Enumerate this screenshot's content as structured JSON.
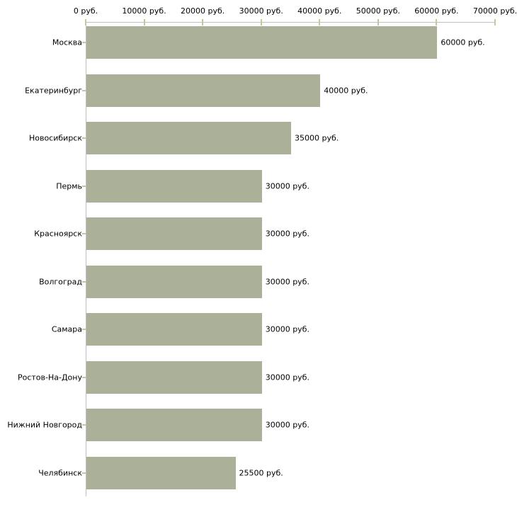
{
  "chart_data": {
    "type": "bar",
    "orientation": "horizontal",
    "title": "",
    "xlabel": "",
    "ylabel": "",
    "unit": "руб.",
    "categories": [
      "Москва",
      "Екатеринбург",
      "Новосибирск",
      "Пермь",
      "Красноярск",
      "Волгоград",
      "Самара",
      "Ростов-На-Дону",
      "Нижний Новгород",
      "Челябинск"
    ],
    "values": [
      60000,
      40000,
      35000,
      30000,
      30000,
      30000,
      30000,
      30000,
      30000,
      25500
    ],
    "value_labels": [
      "60000 руб.",
      "40000 руб.",
      "35000 руб.",
      "30000 руб.",
      "30000 руб.",
      "30000 руб.",
      "30000 руб.",
      "30000 руб.",
      "30000 руб.",
      "25500 руб."
    ],
    "x_ticks": [
      0,
      10000,
      20000,
      30000,
      40000,
      50000,
      60000,
      70000
    ],
    "x_tick_labels": [
      "0 руб.",
      "10000 руб.",
      "20000 руб.",
      "30000 руб.",
      "40000 руб.",
      "50000 руб.",
      "60000 руб.",
      "70000 руб."
    ],
    "xlim": [
      0,
      70000
    ],
    "grid": false,
    "legend": "none",
    "colors": {
      "bar": "#abb199",
      "axis": "#c0c0c0",
      "tick": "#c6c69a",
      "text": "#000000",
      "background": "#ffffff"
    }
  }
}
